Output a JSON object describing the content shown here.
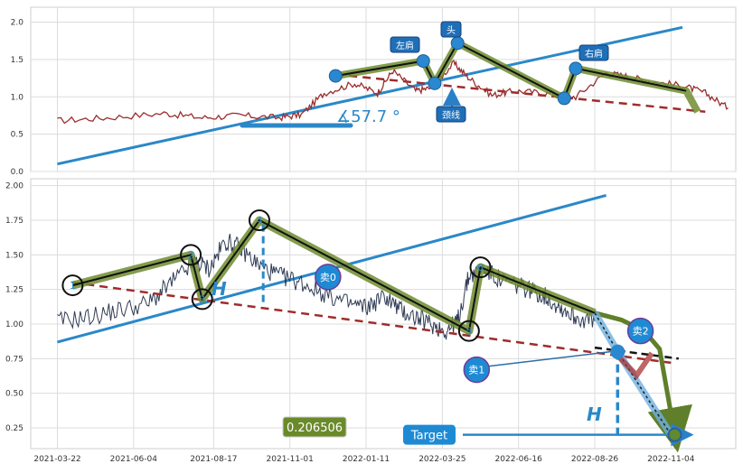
{
  "chart_data": [
    {
      "type": "line",
      "panel": "top",
      "ylim": [
        0,
        2.2
      ],
      "yticks": [
        0.0,
        0.5,
        1.0,
        1.5,
        2.0
      ],
      "ytick_labels": [
        "0.0",
        "0.5",
        "1.0",
        "1.5",
        "2.0"
      ],
      "grid": true,
      "price_series": {
        "color": "#9b2d2d",
        "x": [
          2021.22,
          2021.35,
          2021.5,
          2021.6,
          2021.7,
          2021.8,
          2021.86,
          2021.92,
          2022.0,
          2022.06,
          2022.1,
          2022.16,
          2022.2,
          2022.26,
          2022.3,
          2022.36,
          2022.42,
          2022.5,
          2022.58,
          2022.66,
          2022.72,
          2022.78,
          2022.86,
          2022.92,
          2022.98
        ],
        "y": [
          0.68,
          0.72,
          0.78,
          0.72,
          0.75,
          0.72,
          0.76,
          1.05,
          1.18,
          1.05,
          1.35,
          1.08,
          1.12,
          1.45,
          1.25,
          1.02,
          1.08,
          1.05,
          1.0,
          1.32,
          1.27,
          1.2,
          1.15,
          1.05,
          0.85
        ]
      },
      "pattern_points": [
        {
          "x": 2021.95,
          "y": 1.28
        },
        {
          "x": 2022.18,
          "y": 1.48
        },
        {
          "x": 2022.21,
          "y": 1.18
        },
        {
          "x": 2022.27,
          "y": 1.72
        },
        {
          "x": 2022.55,
          "y": 0.98
        },
        {
          "x": 2022.58,
          "y": 1.38
        },
        {
          "x": 2022.87,
          "y": 1.08
        },
        {
          "x": 2022.9,
          "y": 0.8
        }
      ],
      "neckline": {
        "x": [
          2021.95,
          2022.92
        ],
        "y": [
          1.3,
          0.8
        ]
      },
      "trendline": {
        "x": [
          2021.22,
          2022.86
        ],
        "y": [
          0.1,
          1.93
        ]
      },
      "labels": {
        "left_shoulder": "左肩",
        "head": "头",
        "neckline": "颈线",
        "right_shoulder": "右肩",
        "angle": "∡57.7 °"
      }
    },
    {
      "type": "line",
      "panel": "bottom",
      "ylim": [
        0.1,
        2.05
      ],
      "yticks": [
        0.25,
        0.5,
        0.75,
        1.0,
        1.25,
        1.5,
        1.75,
        2.0
      ],
      "ytick_labels": [
        "0.25",
        "0.50",
        "0.75",
        "1.00",
        "1.25",
        "1.50",
        "1.75",
        "2.00"
      ],
      "xticks": [
        2021.22,
        2021.42,
        2021.63,
        2021.83,
        2022.03,
        2022.23,
        2022.43,
        2022.63,
        2022.83
      ],
      "xtick_labels": [
        "2021-03-22",
        "2021-06-04",
        "2021-08-17",
        "2021-11-01",
        "2022-01-11",
        "2022-03-25",
        "2022-06-16",
        "2022-08-26",
        "2022-11-04"
      ],
      "grid": true,
      "price_series": {
        "color": "#2f3b55",
        "x": [
          2021.22,
          2021.3,
          2021.38,
          2021.46,
          2021.52,
          2021.58,
          2021.62,
          2021.66,
          2021.7,
          2021.75,
          2021.8,
          2021.86,
          2021.92,
          2021.98,
          2022.03,
          2022.08,
          2022.12,
          2022.16,
          2022.2,
          2022.24,
          2022.27,
          2022.3,
          2022.34,
          2022.38,
          2022.42,
          2022.46,
          2022.5,
          2022.54,
          2022.58,
          2022.63
        ],
        "y": [
          1.02,
          1.05,
          1.1,
          1.15,
          1.3,
          1.45,
          1.4,
          1.6,
          1.55,
          1.42,
          1.35,
          1.3,
          1.22,
          1.15,
          1.12,
          1.2,
          1.1,
          1.05,
          1.0,
          0.95,
          1.02,
          1.35,
          1.4,
          1.32,
          1.28,
          1.25,
          1.2,
          1.12,
          1.05,
          1.02
        ]
      },
      "pattern_points": [
        {
          "n": "1",
          "x": 2021.26,
          "y": 1.28
        },
        {
          "n": "2",
          "x": 2021.57,
          "y": 1.5
        },
        {
          "n": "3",
          "x": 2021.6,
          "y": 1.18
        },
        {
          "n": "4",
          "x": 2021.75,
          "y": 1.75
        },
        {
          "n": "5",
          "x": 2022.3,
          "y": 0.95
        },
        {
          "n": "6",
          "x": 2022.33,
          "y": 1.41
        }
      ],
      "pattern_lines": {
        "x": [
          2021.26,
          2021.57,
          2021.6,
          2021.75,
          2022.3,
          2022.33,
          2022.63
        ],
        "y": [
          1.28,
          1.5,
          1.18,
          1.75,
          0.95,
          1.41,
          1.08
        ]
      },
      "neckline": {
        "x": [
          2021.26,
          2022.83
        ],
        "y": [
          1.3,
          0.72
        ]
      },
      "projection_neckline": {
        "x": [
          2022.63,
          2022.85
        ],
        "y": [
          0.83,
          0.75
        ]
      },
      "trendline": {
        "x": [
          2021.22,
          2022.66
        ],
        "y": [
          0.87,
          1.93
        ]
      },
      "sell_path": {
        "x": [
          2022.63,
          2022.7,
          2022.76,
          2022.8,
          2022.84
        ],
        "y": [
          1.08,
          1.03,
          0.95,
          0.82,
          0.2
        ]
      },
      "sell_drop": {
        "x": [
          2022.68,
          2022.74,
          2022.78
        ],
        "y": [
          0.8,
          0.63,
          0.79
        ]
      },
      "blue_target_path": {
        "x": [
          2022.63,
          2022.69,
          2022.83
        ],
        "y": [
          1.08,
          0.8,
          0.2
        ]
      },
      "h_measure": {
        "x": 2021.76,
        "y_top": 1.72,
        "y_bottom": 1.14
      },
      "h_target": {
        "x": 2022.69,
        "y_top": 0.8,
        "y_bottom": 0.2
      },
      "target_level": 0.2,
      "markers": [
        {
          "label": "卖0",
          "x": 2021.93,
          "y": 1.34
        },
        {
          "label": "卖1",
          "x": 2022.32,
          "y": 0.67
        },
        {
          "label": "卖2",
          "x": 2022.75,
          "y": 0.95
        }
      ],
      "labels": {
        "h": "H",
        "value": "0.206506",
        "target": "Target"
      }
    }
  ]
}
